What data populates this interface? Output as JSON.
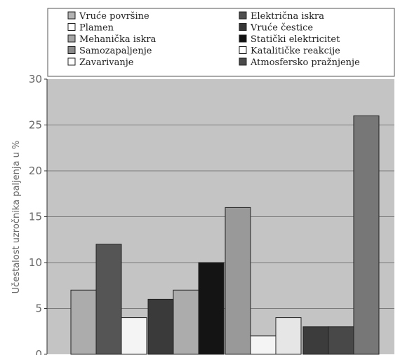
{
  "chart_data": {
    "type": "bar",
    "title": "",
    "xlabel": "",
    "ylabel": "Učestalost uzročnika paljenja u %",
    "ylim": [
      0,
      30
    ],
    "yticks": [
      0,
      5,
      10,
      15,
      20,
      25,
      30
    ],
    "grid": true,
    "legend_position": "top",
    "plot_background": "#c4c4c4",
    "series": [
      {
        "name": "Vruće površine",
        "color": "#b3b3b3"
      },
      {
        "name": "Plamen",
        "color": "#ffffff"
      },
      {
        "name": "Mehanička iskra",
        "color": "#a6a6a6"
      },
      {
        "name": "Samozapaljenje",
        "color": "#8c8c8c"
      },
      {
        "name": "Zavarivanje",
        "color": "#ffffff"
      },
      {
        "name": "Električna iskra",
        "color": "#4f4f4f"
      },
      {
        "name": "Vruće čestice",
        "color": "#363636"
      },
      {
        "name": "Statički elektricitet",
        "color": "#111111"
      },
      {
        "name": "Katalitičke reakcije",
        "color": "#ffffff"
      },
      {
        "name": "Atmosfersko pražnjenje",
        "color": "#4a4a4a"
      }
    ],
    "bars": [
      {
        "value": 7,
        "color": "#acacac"
      },
      {
        "value": 12,
        "color": "#555555"
      },
      {
        "value": 4,
        "color": "#f4f4f4"
      },
      {
        "value": 6,
        "color": "#3a3a3a"
      },
      {
        "value": 7,
        "color": "#acacac"
      },
      {
        "value": 10,
        "color": "#141414"
      },
      {
        "value": 16,
        "color": "#999999"
      },
      {
        "value": 2,
        "color": "#f4f4f4"
      },
      {
        "value": 4,
        "color": "#e6e6e6"
      },
      {
        "value": 3,
        "color": "#3c3c3c"
      },
      {
        "value": 3,
        "color": "#484848"
      },
      {
        "value": 26,
        "color": "#777777"
      }
    ]
  }
}
